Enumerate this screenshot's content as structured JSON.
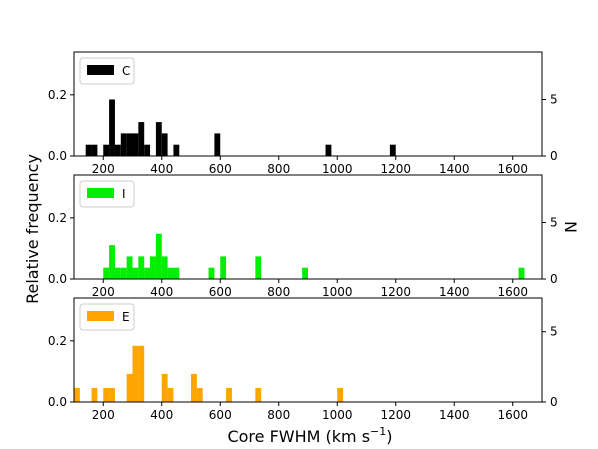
{
  "figure": {
    "xlabel": "Core FWHM (km s",
    "xlabel_sup": "−1",
    "xlabel_end": ")",
    "ylabel_left": "Relative frequency",
    "ylabel_right": "N"
  },
  "chart_data": [
    {
      "type": "bar",
      "legend": "C",
      "color": "#000000",
      "xlim": [
        100,
        1700
      ],
      "ylim": [
        0,
        0.34
      ],
      "yticks": [
        0.0,
        0.2
      ],
      "right_ylim": [
        0,
        9.2
      ],
      "right_yticks": [
        0,
        5
      ],
      "xticks": [
        200,
        400,
        600,
        800,
        1000,
        1200,
        1400,
        1600
      ],
      "xticklabels": [
        "200",
        "400",
        "600",
        "800",
        "1000",
        "1200",
        "1400",
        "1600"
      ],
      "bin_width": 20,
      "bins": [
        {
          "x": 140,
          "count": 1
        },
        {
          "x": 160,
          "count": 1
        },
        {
          "x": 200,
          "count": 1
        },
        {
          "x": 220,
          "count": 5
        },
        {
          "x": 240,
          "count": 1
        },
        {
          "x": 260,
          "count": 2
        },
        {
          "x": 280,
          "count": 2
        },
        {
          "x": 300,
          "count": 2
        },
        {
          "x": 320,
          "count": 3
        },
        {
          "x": 340,
          "count": 1
        },
        {
          "x": 380,
          "count": 3
        },
        {
          "x": 400,
          "count": 2
        },
        {
          "x": 440,
          "count": 1
        },
        {
          "x": 580,
          "count": 2
        },
        {
          "x": 960,
          "count": 1
        },
        {
          "x": 1180,
          "count": 1
        }
      ],
      "legend_position": "top-left"
    },
    {
      "type": "bar",
      "legend": "I",
      "color": "#00ee00",
      "xlim": [
        100,
        1700
      ],
      "ylim": [
        0,
        0.34
      ],
      "yticks": [
        0.0,
        0.2
      ],
      "right_ylim": [
        0,
        9.2
      ],
      "right_yticks": [
        0,
        5
      ],
      "xticks": [
        200,
        400,
        600,
        800,
        1000,
        1200,
        1400,
        1600
      ],
      "xticklabels": [
        "200",
        "400",
        "600",
        "800",
        "1000",
        "1200",
        "1400",
        "1600"
      ],
      "bin_width": 20,
      "bins": [
        {
          "x": 200,
          "count": 1
        },
        {
          "x": 220,
          "count": 3
        },
        {
          "x": 240,
          "count": 1
        },
        {
          "x": 260,
          "count": 1
        },
        {
          "x": 280,
          "count": 2
        },
        {
          "x": 300,
          "count": 1
        },
        {
          "x": 320,
          "count": 2
        },
        {
          "x": 340,
          "count": 1
        },
        {
          "x": 360,
          "count": 2
        },
        {
          "x": 380,
          "count": 4
        },
        {
          "x": 400,
          "count": 2
        },
        {
          "x": 420,
          "count": 1
        },
        {
          "x": 440,
          "count": 1
        },
        {
          "x": 560,
          "count": 1
        },
        {
          "x": 600,
          "count": 2
        },
        {
          "x": 720,
          "count": 2
        },
        {
          "x": 880,
          "count": 1
        },
        {
          "x": 1620,
          "count": 1
        }
      ],
      "legend_position": "top-left"
    },
    {
      "type": "bar",
      "legend": "E",
      "color": "#ffa500",
      "xlim": [
        100,
        1700
      ],
      "ylim": [
        0,
        0.34
      ],
      "yticks": [
        0.0,
        0.2
      ],
      "right_ylim": [
        0,
        7.4
      ],
      "right_yticks": [
        0,
        5
      ],
      "xticks": [
        200,
        400,
        600,
        800,
        1000,
        1200,
        1400,
        1600
      ],
      "xticklabels": [
        "200",
        "400",
        "600",
        "800",
        "1000",
        "1200",
        "1400",
        "1600"
      ],
      "bin_width": 20,
      "bins": [
        {
          "x": 100,
          "count": 1
        },
        {
          "x": 160,
          "count": 1
        },
        {
          "x": 200,
          "count": 1
        },
        {
          "x": 220,
          "count": 1
        },
        {
          "x": 280,
          "count": 2
        },
        {
          "x": 300,
          "count": 4
        },
        {
          "x": 320,
          "count": 4
        },
        {
          "x": 400,
          "count": 2
        },
        {
          "x": 420,
          "count": 1
        },
        {
          "x": 500,
          "count": 2
        },
        {
          "x": 520,
          "count": 1
        },
        {
          "x": 620,
          "count": 1
        },
        {
          "x": 720,
          "count": 1
        },
        {
          "x": 1000,
          "count": 1
        }
      ],
      "legend_position": "top-left"
    }
  ]
}
